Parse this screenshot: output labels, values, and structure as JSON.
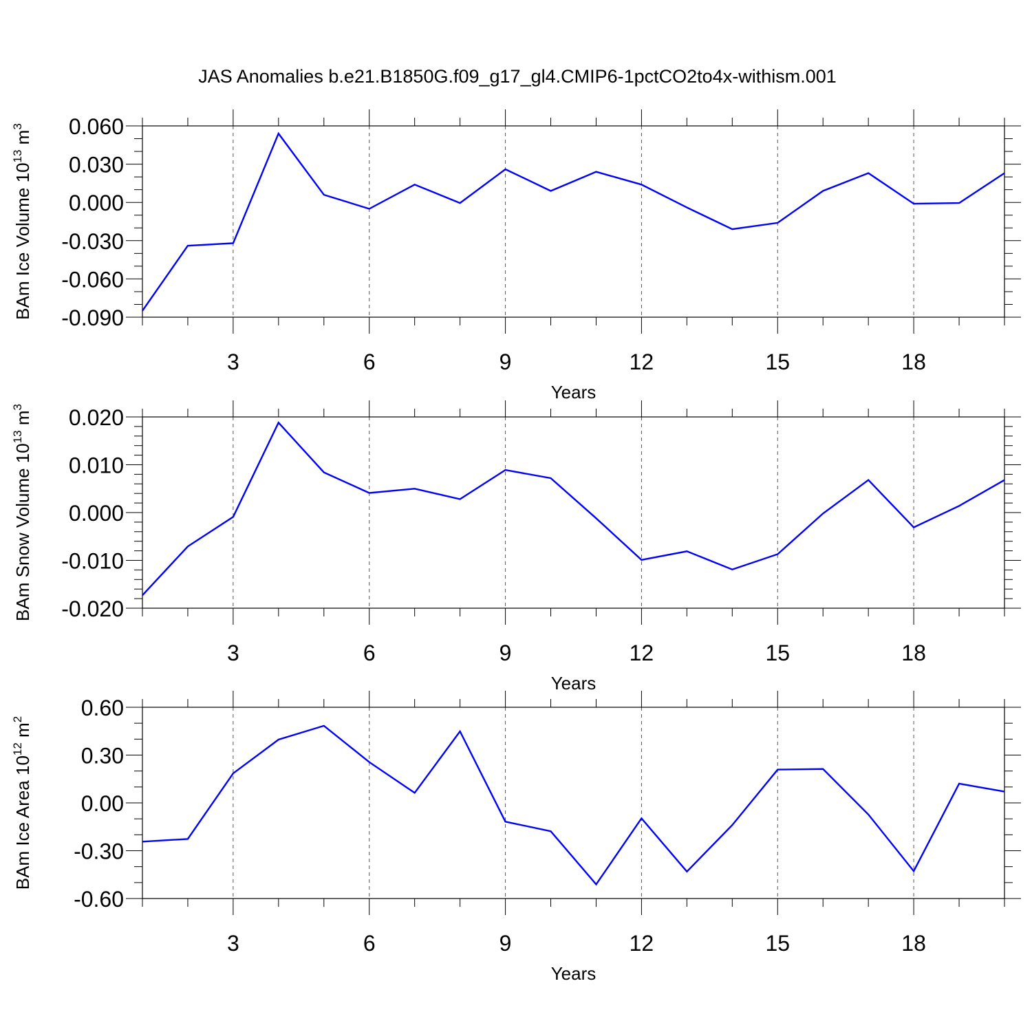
{
  "title": "JAS Anomalies b.e21.B1850G.f09_g17_gl4.CMIP6-1pctCO2to4x-withism.001",
  "chart_data": [
    {
      "type": "line",
      "xlabel": "Years",
      "ylabel": {
        "prefix": "BAm Ice Volume 10",
        "exp": "13",
        "unit": " m",
        "unit_exp": "3"
      },
      "xlim": [
        1,
        20
      ],
      "ylim": [
        -0.09,
        0.06
      ],
      "x_ticks": [
        3,
        6,
        9,
        12,
        15,
        18
      ],
      "x_tick_labels": [
        "3",
        "6",
        "9",
        "12",
        "15",
        "18"
      ],
      "y_ticks": [
        -0.09,
        -0.06,
        -0.03,
        0.0,
        0.03,
        0.06
      ],
      "y_tick_labels": [
        "-0.090",
        "-0.060",
        "-0.030",
        "0.000",
        "0.030",
        "0.060"
      ],
      "y_minor_step": 0.01,
      "grid": "vertical dashed at major x ticks",
      "series": [
        {
          "color": "#0000ff",
          "x": [
            1,
            2,
            3,
            4,
            5,
            6,
            7,
            8,
            9,
            10,
            11,
            12,
            13,
            14,
            15,
            16,
            17,
            18,
            19,
            20
          ],
          "y": [
            -0.085,
            -0.034,
            -0.032,
            0.054,
            0.006,
            -0.005,
            0.014,
            -0.0005,
            0.026,
            0.009,
            0.024,
            0.014,
            -0.004,
            -0.021,
            -0.016,
            0.009,
            0.023,
            -0.001,
            -0.0005,
            0.023
          ]
        }
      ]
    },
    {
      "type": "line",
      "xlabel": "Years",
      "ylabel": {
        "prefix": "BAm Snow Volume 10",
        "exp": "13",
        "unit": " m",
        "unit_exp": "3"
      },
      "xlim": [
        1,
        20
      ],
      "ylim": [
        -0.02,
        0.02
      ],
      "x_ticks": [
        3,
        6,
        9,
        12,
        15,
        18
      ],
      "x_tick_labels": [
        "3",
        "6",
        "9",
        "12",
        "15",
        "18"
      ],
      "y_ticks": [
        -0.02,
        -0.01,
        0.0,
        0.01,
        0.02
      ],
      "y_tick_labels": [
        "-0.020",
        "-0.010",
        "0.000",
        "0.010",
        "0.020"
      ],
      "y_minor_step": 0.002,
      "grid": "vertical dashed at major x ticks",
      "series": [
        {
          "color": "#0000ff",
          "x": [
            1,
            2,
            3,
            4,
            5,
            6,
            7,
            8,
            9,
            10,
            11,
            12,
            13,
            14,
            15,
            16,
            17,
            18,
            19,
            20
          ],
          "y": [
            -0.0173,
            -0.0071,
            -0.0009,
            0.0188,
            0.0084,
            0.0041,
            0.005,
            0.0028,
            0.0089,
            0.0072,
            -0.0012,
            -0.0099,
            -0.0081,
            -0.0119,
            -0.0087,
            -0.0002,
            0.0068,
            -0.0031,
            0.0014,
            0.0068
          ]
        }
      ]
    },
    {
      "type": "line",
      "xlabel": "Years",
      "ylabel": {
        "prefix": "BAm Ice Area 10",
        "exp": "12",
        "unit": " m",
        "unit_exp": "2"
      },
      "xlim": [
        1,
        20
      ],
      "ylim": [
        -0.6,
        0.6
      ],
      "x_ticks": [
        3,
        6,
        9,
        12,
        15,
        18
      ],
      "x_tick_labels": [
        "3",
        "6",
        "9",
        "12",
        "15",
        "18"
      ],
      "y_ticks": [
        -0.6,
        -0.3,
        0.0,
        0.3,
        0.6
      ],
      "y_tick_labels": [
        "-0.60",
        "-0.30",
        "0.00",
        "0.30",
        "0.60"
      ],
      "y_minor_step": 0.1,
      "grid": "vertical dashed at major x ticks",
      "series": [
        {
          "color": "#0000ff",
          "x": [
            1,
            2,
            3,
            4,
            5,
            6,
            7,
            8,
            9,
            10,
            11,
            12,
            13,
            14,
            15,
            16,
            17,
            18,
            19,
            20
          ],
          "y": [
            -0.243,
            -0.226,
            0.185,
            0.397,
            0.484,
            0.256,
            0.063,
            0.449,
            -0.118,
            -0.178,
            -0.511,
            -0.097,
            -0.431,
            -0.139,
            0.209,
            0.213,
            -0.073,
            -0.428,
            0.121,
            0.071
          ]
        }
      ]
    }
  ]
}
